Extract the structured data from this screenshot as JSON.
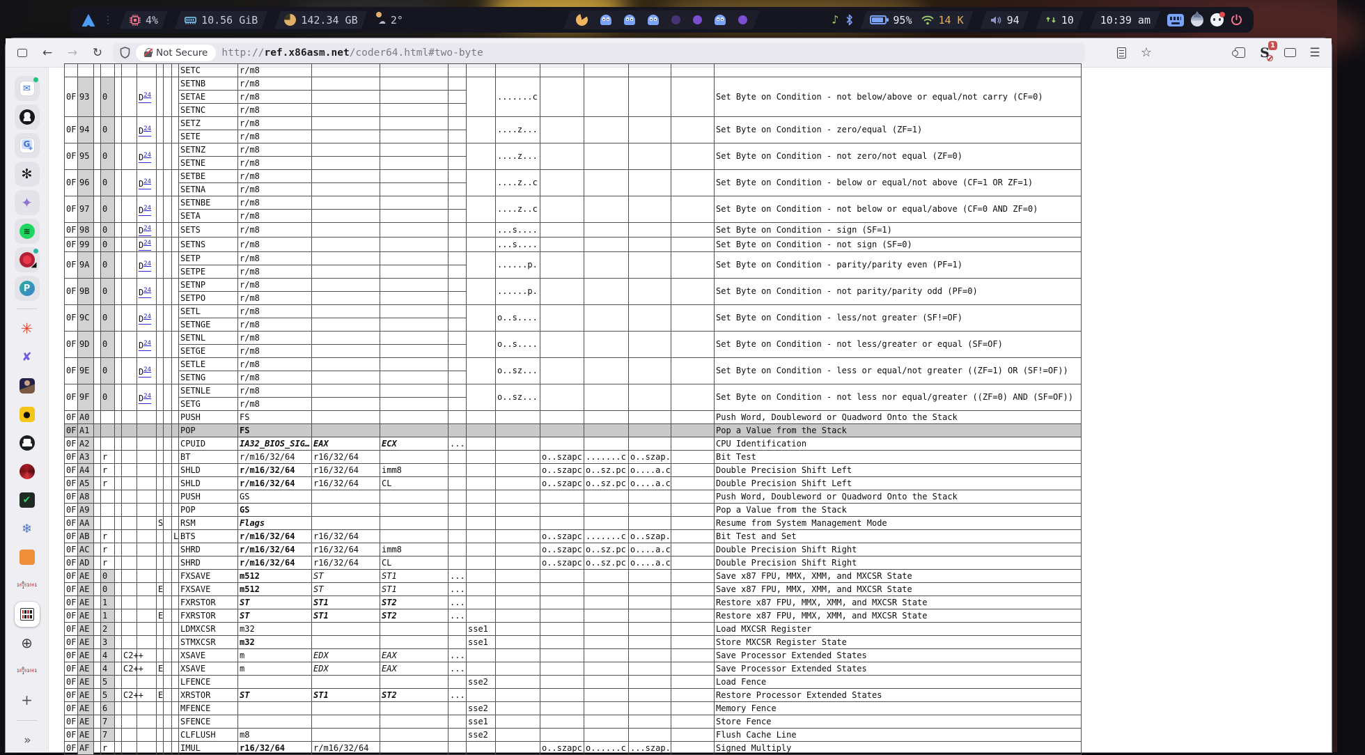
{
  "topbar": {
    "cpu": "4%",
    "ram": "10.56 GiB",
    "disk": "142.34 GB",
    "weather": "2°",
    "battery": "95%",
    "net_speed": "14 K",
    "volume": "94",
    "refresh_count": "10",
    "clock": "10:39 am",
    "workspaces": [
      "pacman",
      "ghost",
      "ghost",
      "ghost",
      "dimdot",
      "dot",
      "ghost",
      "dot"
    ]
  },
  "browser": {
    "security_label": "Not Secure",
    "url_scheme": "http://",
    "url_domain": "ref.x86asm.net",
    "url_path": "/coder64.html#two-byte",
    "extension_badge": "1"
  },
  "sidebar": {
    "items": [
      {
        "name": "tab-mail",
        "type": "mail",
        "tile": true,
        "dot": "#21c27a"
      },
      {
        "name": "tab-avatar-dark",
        "type": "blackball",
        "tile": true
      },
      {
        "name": "tab-translate",
        "type": "translate",
        "tile": true
      },
      {
        "name": "tab-chatgpt",
        "type": "gpt",
        "tile": true
      },
      {
        "name": "tab-gemini",
        "type": "gemini",
        "tile": true
      },
      {
        "name": "tab-spotify",
        "type": "spotify",
        "tile": true
      },
      {
        "name": "tab-media-audio",
        "type": "redaudio",
        "tile": true,
        "dot": "#2ab5a5"
      },
      {
        "name": "tab-p-app",
        "type": "pball",
        "tile": true
      },
      {
        "divider": true
      },
      {
        "name": "tab-spark",
        "type": "spark"
      },
      {
        "name": "tab-x-tool",
        "type": "xblades"
      },
      {
        "name": "tab-avatar-photo",
        "type": "photo"
      },
      {
        "name": "tab-yellow-doc",
        "type": "yellowdot"
      },
      {
        "name": "tab-github",
        "type": "github"
      },
      {
        "name": "tab-red-dragon",
        "type": "dragon"
      },
      {
        "name": "tab-v-editor",
        "type": "vcheck"
      },
      {
        "name": "tab-snowflake",
        "type": "snow"
      },
      {
        "name": "tab-orange",
        "type": "orange"
      },
      {
        "name": "tab-binary-doc",
        "type": "binary"
      },
      {
        "name": "tab-x86asm-active",
        "type": "favtable",
        "active": true
      },
      {
        "name": "tab-globe",
        "type": "globe"
      },
      {
        "name": "tab-binary-doc-2",
        "type": "binary"
      },
      {
        "name": "new-tab-button",
        "type": "plus"
      },
      {
        "divider": true
      },
      {
        "name": "expand-sidebar-button",
        "type": "chev"
      }
    ]
  },
  "table": {
    "rows": [
      {
        "partial": true,
        "lines": [
          [
            "SETC",
            "r/m8",
            "",
            "",
            ""
          ]
        ]
      },
      {
        "po": "93",
        "flds": "0",
        "doc": true,
        "lines": [
          [
            "SETNB",
            "r/m8",
            "",
            "",
            ""
          ],
          [
            "SETAE",
            "r/m8",
            "",
            "",
            ""
          ],
          [
            "SETNC",
            "r/m8",
            "",
            "",
            ""
          ]
        ],
        "tf": ".......c",
        "desc": "Set Byte on Condition - not below/above or equal/not carry (CF=0)"
      },
      {
        "po": "94",
        "flds": "0",
        "doc": true,
        "lines": [
          [
            "SETZ",
            "r/m8",
            "",
            "",
            ""
          ],
          [
            "SETE",
            "r/m8",
            "",
            "",
            ""
          ]
        ],
        "tf": "....z...",
        "desc": "Set Byte on Condition - zero/equal (ZF=1)"
      },
      {
        "po": "95",
        "flds": "0",
        "doc": true,
        "lines": [
          [
            "SETNZ",
            "r/m8",
            "",
            "",
            ""
          ],
          [
            "SETNE",
            "r/m8",
            "",
            "",
            ""
          ]
        ],
        "tf": "....z...",
        "desc": "Set Byte on Condition - not zero/not equal (ZF=0)"
      },
      {
        "po": "96",
        "flds": "0",
        "doc": true,
        "lines": [
          [
            "SETBE",
            "r/m8",
            "",
            "",
            ""
          ],
          [
            "SETNA",
            "r/m8",
            "",
            "",
            ""
          ]
        ],
        "tf": "....z..c",
        "desc": "Set Byte on Condition - below or equal/not above (CF=1 OR ZF=1)"
      },
      {
        "po": "97",
        "flds": "0",
        "doc": true,
        "lines": [
          [
            "SETNBE",
            "r/m8",
            "",
            "",
            ""
          ],
          [
            "SETA",
            "r/m8",
            "",
            "",
            ""
          ]
        ],
        "tf": "....z..c",
        "desc": "Set Byte on Condition - not below or equal/above (CF=0 AND ZF=0)"
      },
      {
        "po": "98",
        "flds": "0",
        "doc": true,
        "lines": [
          [
            "SETS",
            "r/m8",
            "",
            "",
            ""
          ]
        ],
        "tf": "...s....",
        "desc": "Set Byte on Condition - sign (SF=1)"
      },
      {
        "po": "99",
        "flds": "0",
        "doc": true,
        "lines": [
          [
            "SETNS",
            "r/m8",
            "",
            "",
            ""
          ]
        ],
        "tf": "...s....",
        "desc": "Set Byte on Condition - not sign (SF=0)"
      },
      {
        "po": "9A",
        "flds": "0",
        "doc": true,
        "lines": [
          [
            "SETP",
            "r/m8",
            "",
            "",
            ""
          ],
          [
            "SETPE",
            "r/m8",
            "",
            "",
            ""
          ]
        ],
        "tf": "......p.",
        "desc": "Set Byte on Condition - parity/parity even (PF=1)"
      },
      {
        "po": "9B",
        "flds": "0",
        "doc": true,
        "lines": [
          [
            "SETNP",
            "r/m8",
            "",
            "",
            ""
          ],
          [
            "SETPO",
            "r/m8",
            "",
            "",
            ""
          ]
        ],
        "tf": "......p.",
        "desc": "Set Byte on Condition - not parity/parity odd (PF=0)"
      },
      {
        "po": "9C",
        "flds": "0",
        "doc": true,
        "lines": [
          [
            "SETL",
            "r/m8",
            "",
            "",
            ""
          ],
          [
            "SETNGE",
            "r/m8",
            "",
            "",
            ""
          ]
        ],
        "tf": "o..s....",
        "desc": "Set Byte on Condition - less/not greater (SF!=OF)"
      },
      {
        "po": "9D",
        "flds": "0",
        "doc": true,
        "lines": [
          [
            "SETNL",
            "r/m8",
            "",
            "",
            ""
          ],
          [
            "SETGE",
            "r/m8",
            "",
            "",
            ""
          ]
        ],
        "tf": "o..s....",
        "desc": "Set Byte on Condition - not less/greater or equal (SF=OF)"
      },
      {
        "po": "9E",
        "flds": "0",
        "doc": true,
        "lines": [
          [
            "SETLE",
            "r/m8",
            "",
            "",
            ""
          ],
          [
            "SETNG",
            "r/m8",
            "",
            "",
            ""
          ]
        ],
        "tf": "o..sz...",
        "desc": "Set Byte on Condition - less or equal/not greater ((ZF=1) OR (SF!=OF))"
      },
      {
        "po": "9F",
        "flds": "0",
        "doc": true,
        "lines": [
          [
            "SETNLE",
            "r/m8",
            "",
            "",
            ""
          ],
          [
            "SETG",
            "r/m8",
            "",
            "",
            ""
          ]
        ],
        "tf": "o..sz...",
        "desc": "Set Byte on Condition - not less nor equal/greater ((ZF=0) AND (SF=OF))"
      },
      {
        "po": "A0",
        "lines": [
          [
            "PUSH",
            "FS",
            "",
            "",
            ""
          ]
        ],
        "desc": "Push Word, Doubleword or Quadword Onto the Stack"
      },
      {
        "po": "A1",
        "hl": true,
        "lines": [
          [
            "POP",
            "**FS**",
            "",
            "",
            ""
          ]
        ],
        "desc": "Pop a Value from the Stack"
      },
      {
        "po": "A2",
        "lines": [
          [
            "CPUID",
            "***IA32_BIOS_SIG…***",
            "***EAX***",
            "***ECX***",
            "..."
          ]
        ],
        "desc": "CPU Identification"
      },
      {
        "po": "A3",
        "flds": "r",
        "lines": [
          [
            "BT",
            "r/m16/32/64",
            "r16/32/64",
            "",
            ""
          ]
        ],
        "mf": "o..szapc",
        "df": ".......c",
        "uf": "o..szap.",
        "desc": "Bit Test"
      },
      {
        "po": "A4",
        "flds": "r",
        "lines": [
          [
            "SHLD",
            "**r/m16/32/64**",
            "r16/32/64",
            "imm8",
            ""
          ]
        ],
        "mf": "o..szapc",
        "df": "o..sz.pc",
        "uf": "o....a.c",
        "desc": "Double Precision Shift Left"
      },
      {
        "po": "A5",
        "flds": "r",
        "lines": [
          [
            "SHLD",
            "**r/m16/32/64**",
            "r16/32/64",
            "CL",
            ""
          ]
        ],
        "mf": "o..szapc",
        "df": "o..sz.pc",
        "uf": "o....a.c",
        "desc": "Double Precision Shift Left"
      },
      {
        "po": "A8",
        "lines": [
          [
            "PUSH",
            "GS",
            "",
            "",
            ""
          ]
        ],
        "desc": "Push Word, Doubleword or Quadword Onto the Stack"
      },
      {
        "po": "A9",
        "lines": [
          [
            "POP",
            "**GS**",
            "",
            "",
            ""
          ]
        ],
        "desc": "Pop a Value from the Stack"
      },
      {
        "po": "AA",
        "m": "S",
        "lines": [
          [
            "RSM",
            "***Flags***",
            "",
            "",
            ""
          ]
        ],
        "desc": "Resume from System Management Mode"
      },
      {
        "po": "AB",
        "flds": "r",
        "x": "L",
        "lines": [
          [
            "BTS",
            "**r/m16/32/64**",
            "r16/32/64",
            "",
            ""
          ]
        ],
        "mf": "o..szapc",
        "df": ".......c",
        "uf": "o..szap.",
        "desc": "Bit Test and Set"
      },
      {
        "po": "AC",
        "flds": "r",
        "lines": [
          [
            "SHRD",
            "**r/m16/32/64**",
            "r16/32/64",
            "imm8",
            ""
          ]
        ],
        "mf": "o..szapc",
        "df": "o..sz.pc",
        "uf": "o....a.c",
        "desc": "Double Precision Shift Right"
      },
      {
        "po": "AD",
        "flds": "r",
        "lines": [
          [
            "SHRD",
            "**r/m16/32/64**",
            "r16/32/64",
            "CL",
            ""
          ]
        ],
        "mf": "o..szapc",
        "df": "o..sz.pc",
        "uf": "o....a.c",
        "desc": "Double Precision Shift Right"
      },
      {
        "po": "AE",
        "flds": "0",
        "lines": [
          [
            "FXSAVE",
            "**m512**",
            "*ST*",
            "*ST1*",
            "..."
          ]
        ],
        "desc": "Save x87 FPU, MMX, XMM, and MXCSR State"
      },
      {
        "po": "AE",
        "flds": "0",
        "m": "E",
        "lines": [
          [
            "FXSAVE",
            "**m512**",
            "*ST*",
            "*ST1*",
            "..."
          ]
        ],
        "desc": "Save x87 FPU, MMX, XMM, and MXCSR State"
      },
      {
        "po": "AE",
        "flds": "1",
        "lines": [
          [
            "FXRSTOR",
            "***ST***",
            "***ST1***",
            "***ST2***",
            "..."
          ]
        ],
        "desc": "Restore x87 FPU, MMX, XMM, and MXCSR State"
      },
      {
        "po": "AE",
        "flds": "1",
        "m": "E",
        "lines": [
          [
            "FXRSTOR",
            "***ST***",
            "***ST1***",
            "***ST2***",
            "..."
          ]
        ],
        "desc": "Restore x87 FPU, MMX, XMM, and MXCSR State"
      },
      {
        "po": "AE",
        "flds": "2",
        "lines": [
          [
            "LDMXCSR",
            "m32",
            "",
            "",
            ""
          ]
        ],
        "iext": "sse1",
        "desc": "Load MXCSR Register"
      },
      {
        "po": "AE",
        "flds": "3",
        "lines": [
          [
            "STMXCSR",
            "**m32**",
            "",
            "",
            ""
          ]
        ],
        "iext": "sse1",
        "desc": "Store MXCSR Register State"
      },
      {
        "po": "AE",
        "flds": "4",
        "proc": "C2++",
        "lines": [
          [
            "XSAVE",
            "m",
            "*EDX*",
            "*EAX*",
            "..."
          ]
        ],
        "desc": "Save Processor Extended States"
      },
      {
        "po": "AE",
        "flds": "4",
        "proc": "C2++",
        "m": "E",
        "lines": [
          [
            "XSAVE",
            "m",
            "*EDX*",
            "*EAX*",
            "..."
          ]
        ],
        "desc": "Save Processor Extended States"
      },
      {
        "po": "AE",
        "flds": "5",
        "lines": [
          [
            "LFENCE",
            "",
            "",
            "",
            ""
          ]
        ],
        "iext": "sse2",
        "desc": "Load Fence"
      },
      {
        "po": "AE",
        "flds": "5",
        "proc": "C2++",
        "m": "E",
        "lines": [
          [
            "XRSTOR",
            "***ST***",
            "***ST1***",
            "***ST2***",
            "..."
          ]
        ],
        "desc": "Restore Processor Extended States"
      },
      {
        "po": "AE",
        "flds": "6",
        "lines": [
          [
            "MFENCE",
            "",
            "",
            "",
            ""
          ]
        ],
        "iext": "sse2",
        "desc": "Memory Fence"
      },
      {
        "po": "AE",
        "flds": "7",
        "lines": [
          [
            "SFENCE",
            "",
            "",
            "",
            ""
          ]
        ],
        "iext": "sse1",
        "desc": "Store Fence"
      },
      {
        "po": "AE",
        "flds": "7",
        "lines": [
          [
            "CLFLUSH",
            "m8",
            "",
            "",
            ""
          ]
        ],
        "iext": "sse2",
        "desc": "Flush Cache Line"
      },
      {
        "po": "AF",
        "flds": "r",
        "lines": [
          [
            "IMUL",
            "**r16/32/64**",
            "r/m16/32/64",
            "",
            ""
          ]
        ],
        "mf": "o..szapc",
        "df": "o......c",
        "uf": "...szap.",
        "desc": "Signed Multiply"
      }
    ]
  }
}
